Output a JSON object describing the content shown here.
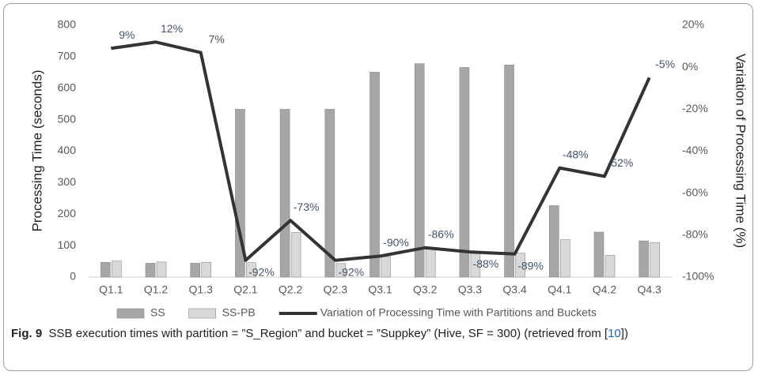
{
  "chart_data": {
    "type": "bar",
    "y_label": "Processing Time (seconds)",
    "y2_label": "Variation of Processing Time (%)",
    "categories": [
      "Q1.1",
      "Q1.2",
      "Q1.3",
      "Q2.1",
      "Q2.2",
      "Q2.3",
      "Q3.1",
      "Q3.2",
      "Q3.3",
      "Q3.4",
      "Q4.1",
      "Q4.2",
      "Q4.3"
    ],
    "series": [
      {
        "name": "SS",
        "type": "bar",
        "color": "#a6a6a6",
        "values": [
          47,
          44,
          44,
          533,
          533,
          533,
          651,
          678,
          666,
          674,
          227,
          143,
          115
        ]
      },
      {
        "name": "SS-PB",
        "type": "bar",
        "color": "#d9d9d9",
        "values": [
          51,
          48,
          47,
          46,
          142,
          43,
          65,
          94,
          80,
          76,
          119,
          69,
          110
        ]
      },
      {
        "name": "Variation of Processing Time with Partitions and Buckets",
        "type": "line",
        "axis": "y2",
        "color": "#333333",
        "values": [
          9,
          12,
          7,
          -92,
          -73,
          -92,
          -90,
          -86,
          -88,
          -89,
          -48,
          -52,
          -5
        ],
        "value_labels": [
          "9%",
          "12%",
          "7%",
          "-92%",
          "-73%",
          "-92%",
          "-90%",
          "-86%",
          "-88%",
          "-89%",
          "-48%",
          "-52%",
          "-5%"
        ]
      }
    ],
    "ylim": [
      0,
      800
    ],
    "yticks": [
      0,
      100,
      200,
      300,
      400,
      500,
      600,
      700,
      800
    ],
    "y2lim": [
      -100,
      20
    ],
    "y2ticks": [
      {
        "value": -100,
        "label": "-100%"
      },
      {
        "value": -80,
        "label": "-80%"
      },
      {
        "value": -60,
        "label": "-60%"
      },
      {
        "value": -40,
        "label": "-40%"
      },
      {
        "value": -20,
        "label": "-20%"
      },
      {
        "value": 0,
        "label": "0%"
      },
      {
        "value": 20,
        "label": "20%"
      }
    ],
    "grid": false,
    "legend": "bottom"
  },
  "caption": {
    "label": "Fig. 9",
    "text": "SSB execution times with partition = ”S_Region” and bucket = ”Suppkey” (Hive, SF = 300) (retrieved from [",
    "ref": "10",
    "end": "])"
  }
}
